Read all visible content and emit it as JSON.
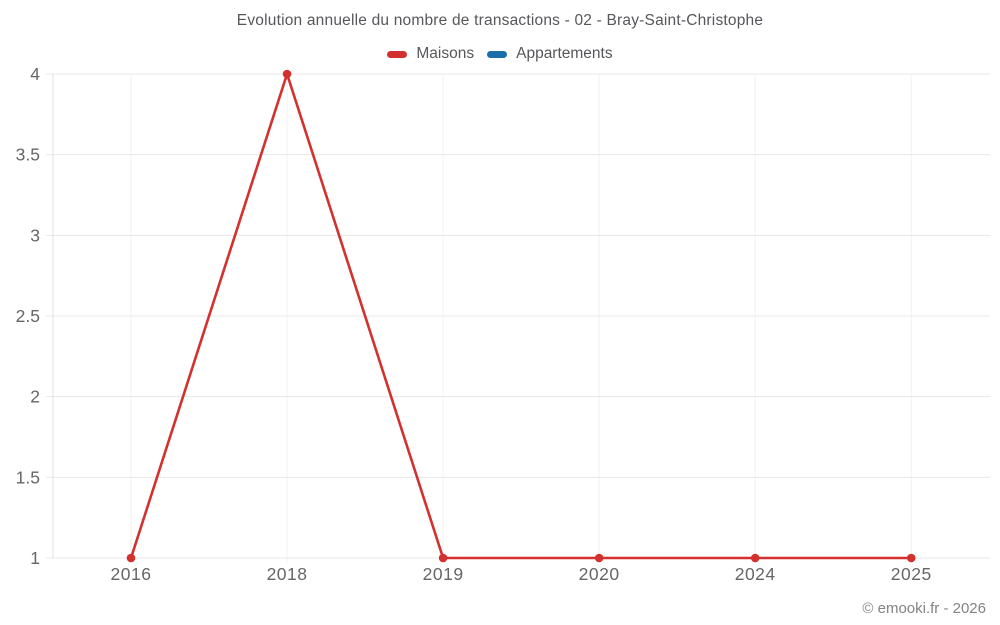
{
  "page": {
    "title": "Evolution annuelle du nombre de transactions - 02 - Bray-Saint-Christophe"
  },
  "legend": {
    "items": [
      {
        "label": "Maisons",
        "color": "#d2312e"
      },
      {
        "label": "Appartements",
        "color": "#1a6fa8"
      }
    ]
  },
  "footer": {
    "copyright": "© emooki.fr - 2026"
  },
  "chart_data": {
    "type": "line",
    "title": "Evolution annuelle du nombre de transactions - 02 - Bray-Saint-Christophe",
    "categories": [
      "2016",
      "2018",
      "2019",
      "2020",
      "2024",
      "2025"
    ],
    "series": [
      {
        "name": "Maisons",
        "color": "#d2312e",
        "values": [
          1,
          4,
          1,
          1,
          1,
          1
        ]
      },
      {
        "name": "Appartements",
        "color": "#1a6fa8",
        "values": []
      }
    ],
    "xlabel": "",
    "ylabel": "",
    "ylim": [
      1,
      4
    ],
    "yticks": [
      1,
      1.5,
      2,
      2.5,
      3,
      3.5,
      4
    ],
    "grid": true,
    "legend_position": "top",
    "colors": {
      "axis_text": "#666666",
      "h_gridline": "#e8e8e8",
      "v_gridline": "#f2f2f2",
      "axis_line": "#e0e0e0"
    }
  }
}
